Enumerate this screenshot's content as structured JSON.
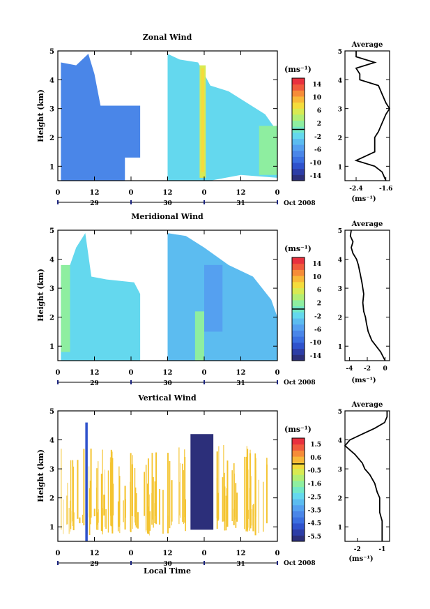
{
  "chart_data": [
    {
      "type": "heatmap",
      "title": "Zonal Wind",
      "ylabel": "Height (km)",
      "ylim": [
        0.5,
        5
      ],
      "yticks": [
        "1",
        "2",
        "3",
        "4",
        "5"
      ],
      "xticks": [
        "0",
        "12",
        "0",
        "12",
        "0",
        "12",
        "0"
      ],
      "xlim_hours": [
        0,
        72
      ],
      "days": [
        "29",
        "30",
        "31"
      ],
      "month_label": "Oct 2008",
      "colorbar": {
        "unit": "(ms⁻¹)",
        "ticks": [
          "14",
          "10",
          "6",
          "2",
          "-2",
          "-6",
          "-10",
          "-14"
        ],
        "range": [
          -16,
          16
        ]
      },
      "average": {
        "title": "Average",
        "xlabel": "(ms⁻¹)",
        "xticks": [
          "-2.4",
          "-1.6"
        ],
        "xlim": [
          -2.7,
          -1.5
        ],
        "yticks": [
          "1",
          "2",
          "3",
          "4",
          "5"
        ],
        "height_km": [
          0.5,
          0.8,
          1.0,
          1.2,
          1.5,
          1.8,
          2.0,
          2.2,
          2.5,
          2.8,
          3.0,
          3.2,
          3.5,
          3.8,
          4.0,
          4.2,
          4.4,
          4.6,
          4.8,
          5.0
        ],
        "value": [
          -1.6,
          -1.7,
          -1.9,
          -2.4,
          -1.9,
          -1.9,
          -1.9,
          -1.8,
          -1.7,
          -1.6,
          -1.5,
          -1.6,
          -1.7,
          -1.8,
          -2.3,
          -2.3,
          -2.4,
          -1.9,
          -2.4,
          -2.4
        ]
      }
    },
    {
      "type": "heatmap",
      "title": "Meridional Wind",
      "ylabel": "Height (km)",
      "ylim": [
        0.5,
        5
      ],
      "yticks": [
        "1",
        "2",
        "3",
        "4",
        "5"
      ],
      "xticks": [
        "0",
        "12",
        "0",
        "12",
        "0",
        "12",
        "0"
      ],
      "xlim_hours": [
        0,
        72
      ],
      "days": [
        "29",
        "30",
        "31"
      ],
      "month_label": "Oct 2008",
      "colorbar": {
        "unit": "(ms⁻¹)",
        "ticks": [
          "14",
          "10",
          "6",
          "2",
          "-2",
          "-6",
          "-10",
          "-14"
        ],
        "range": [
          -16,
          16
        ]
      },
      "average": {
        "title": "Average",
        "xlabel": "(ms⁻¹)",
        "xticks": [
          "-4",
          "-2",
          "0"
        ],
        "xlim": [
          -4.5,
          0.5
        ],
        "yticks": [
          "1",
          "2",
          "3",
          "4",
          "5"
        ],
        "height_km": [
          0.5,
          0.8,
          1.0,
          1.2,
          1.5,
          1.8,
          2.0,
          2.2,
          2.5,
          2.8,
          3.0,
          3.2,
          3.5,
          3.8,
          4.0,
          4.2,
          4.4,
          4.6,
          4.8,
          5.0
        ],
        "value": [
          0.0,
          -0.5,
          -1.0,
          -1.5,
          -1.9,
          -2.1,
          -2.2,
          -2.4,
          -2.5,
          -2.4,
          -2.5,
          -2.6,
          -2.8,
          -3.0,
          -3.2,
          -3.6,
          -3.8,
          -3.6,
          -3.9,
          -3.8
        ]
      }
    },
    {
      "type": "heatmap",
      "title": "Vertical Wind",
      "ylabel": "Height (km)",
      "xlabel": "Local Time",
      "ylim": [
        0.5,
        5
      ],
      "yticks": [
        "1",
        "2",
        "3",
        "4",
        "5"
      ],
      "xticks": [
        "0",
        "12",
        "0",
        "12",
        "0",
        "12",
        "0"
      ],
      "xlim_hours": [
        0,
        72
      ],
      "days": [
        "29",
        "30",
        "31"
      ],
      "month_label": "Oct 2008",
      "colorbar": {
        "unit": "(ms⁻¹)",
        "ticks": [
          "1.5",
          "0.6",
          "-0.5",
          "-1.6",
          "-2.5",
          "-3.5",
          "-4.5",
          "-5.5"
        ],
        "range": [
          -6,
          2
        ]
      },
      "average": {
        "title": "Average",
        "xlabel": "(ms⁻¹)",
        "xticks": [
          "-2",
          "-1"
        ],
        "xlim": [
          -2.5,
          -0.7
        ],
        "yticks": [
          "1",
          "2",
          "3",
          "4",
          "5"
        ],
        "height_km": [
          0.5,
          0.8,
          1.0,
          1.2,
          1.5,
          1.8,
          2.0,
          2.2,
          2.5,
          2.8,
          3.0,
          3.2,
          3.5,
          3.8,
          4.0,
          4.2,
          4.4,
          4.6,
          4.8,
          5.0
        ],
        "value": [
          -1.0,
          -1.0,
          -1.0,
          -1.0,
          -1.1,
          -1.1,
          -1.1,
          -1.2,
          -1.3,
          -1.5,
          -1.7,
          -1.8,
          -2.1,
          -2.5,
          -2.3,
          -1.8,
          -1.3,
          -0.9,
          -0.8,
          -0.8
        ]
      }
    }
  ],
  "colors": {
    "colormap": [
      "#2c2f7a",
      "#2d3da6",
      "#2f52cc",
      "#3b6fe0",
      "#4a86e8",
      "#55a0f0",
      "#5cbcf0",
      "#64d8ee",
      "#72e8c8",
      "#8eeea0",
      "#b2ee74",
      "#d8ea52",
      "#f4dc3c",
      "#f8b838",
      "#f68c38",
      "#f05a3c",
      "#e8303e"
    ],
    "zonal_field": "#4a86e8",
    "meridional_field": "#64d8ee",
    "vertical_field": "#f4c430",
    "vertical_down": "#2c2f7a"
  }
}
